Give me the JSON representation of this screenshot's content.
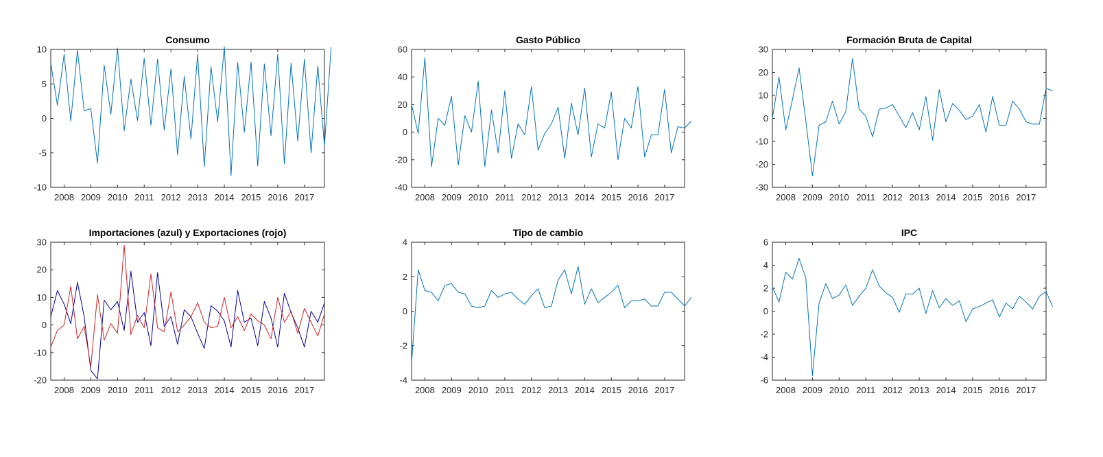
{
  "figure": {
    "background": "#ffffff"
  },
  "chart_data": [
    {
      "type": "line",
      "title": "Consumo",
      "xlabel": "",
      "ylabel": "",
      "x_start": "2007-Q3",
      "xticks": [
        "2008",
        "2009",
        "2010",
        "2011",
        "2012",
        "2013",
        "2014",
        "2015",
        "2016",
        "2017"
      ],
      "xlim": [
        "2007-Q3",
        "2017-Q4"
      ],
      "ylim": [
        -10,
        10
      ],
      "yticks": [
        -10,
        -5,
        0,
        5,
        10
      ],
      "series": [
        {
          "color": "#0072BD",
          "values": [
            8,
            1.9,
            9.3,
            -0.4,
            9.9,
            1.1,
            1.4,
            -6.5,
            7.7,
            0.6,
            10.2,
            -1.8,
            5.7,
            -0.3,
            8.7,
            -1.0,
            8.6,
            -1.7,
            7.2,
            -5.3,
            6.1,
            -3.0,
            9.3,
            -7.0,
            7.5,
            -0.5,
            10.4,
            -8.3,
            8.1,
            -2.0,
            8.2,
            -6.9,
            7.9,
            -2.5,
            9.3,
            -6.6,
            8.0,
            -3.3,
            8.6,
            -5.0,
            7.6,
            -4.0,
            10.3
          ]
        }
      ]
    },
    {
      "type": "line",
      "title": "Gasto Público",
      "xlabel": "",
      "ylabel": "",
      "x_start": "2007-Q3",
      "xticks": [
        "2008",
        "2009",
        "2010",
        "2011",
        "2012",
        "2013",
        "2014",
        "2015",
        "2016",
        "2017"
      ],
      "xlim": [
        "2007-Q3",
        "2017-Q4"
      ],
      "ylim": [
        -40,
        60
      ],
      "yticks": [
        -40,
        -20,
        0,
        20,
        40,
        60
      ],
      "series": [
        {
          "color": "#0072BD",
          "values": [
            20,
            -1,
            54,
            -25,
            10,
            5,
            26,
            -24,
            12,
            0,
            37,
            -25,
            16,
            -15,
            30,
            -19,
            6,
            -2,
            33,
            -13,
            -1,
            6,
            18,
            -19,
            21,
            -2,
            32,
            -18,
            6,
            3,
            29,
            -20,
            10,
            3,
            33,
            -18,
            -2,
            -2,
            31,
            -15,
            4,
            3,
            8
          ]
        }
      ]
    },
    {
      "type": "line",
      "title": "Formación Bruta de Capital",
      "xlabel": "",
      "ylabel": "",
      "x_start": "2007-Q3",
      "xticks": [
        "2008",
        "2009",
        "2010",
        "2011",
        "2012",
        "2013",
        "2014",
        "2015",
        "2016",
        "2017"
      ],
      "xlim": [
        "2007-Q3",
        "2017-Q4"
      ],
      "ylim": [
        -30,
        30
      ],
      "yticks": [
        -30,
        -20,
        -10,
        0,
        10,
        20,
        30
      ],
      "series": [
        {
          "color": "#0072BD",
          "values": [
            0,
            18,
            -5,
            8,
            22,
            -1,
            -25,
            -3,
            -1.5,
            7.5,
            -2.5,
            3,
            26,
            4,
            1,
            -8,
            4,
            4.5,
            6,
            1,
            -4,
            2.5,
            -5,
            9.5,
            -9.5,
            12.5,
            -1.5,
            6.5,
            3.5,
            -0.5,
            1,
            6,
            -6,
            9.5,
            -3,
            -3,
            7.5,
            4,
            -1.5,
            -2.5,
            -2.5,
            13,
            12
          ]
        }
      ]
    },
    {
      "type": "line",
      "title": "Importaciones (azul) y Exportaciones (rojo)",
      "xlabel": "",
      "ylabel": "",
      "x_start": "2007-Q3",
      "xticks": [
        "2008",
        "2009",
        "2010",
        "2011",
        "2012",
        "2013",
        "2014",
        "2015",
        "2016",
        "2017"
      ],
      "xlim": [
        "2007-Q3",
        "2017-Q4"
      ],
      "ylim": [
        -20,
        30
      ],
      "yticks": [
        -20,
        -10,
        0,
        10,
        20,
        30
      ],
      "series": [
        {
          "color": "#0000A0",
          "values": [
            3,
            12.5,
            7.5,
            0.5,
            15.5,
            3,
            -16.5,
            -19.5,
            9,
            5.5,
            8.5,
            -2,
            19.5,
            1,
            4.5,
            -7.5,
            19,
            -0.5,
            3,
            -7,
            5.5,
            3,
            -3,
            -8.5,
            7,
            5,
            1.5,
            -8,
            12.5,
            1,
            2.5,
            -7.5,
            8.5,
            2.5,
            -8,
            11.5,
            4.5,
            -1,
            -8,
            5,
            1,
            8
          ]
        },
        {
          "color": "#D22222",
          "values": [
            -8,
            -2,
            0,
            14,
            -5,
            -0.5,
            -15,
            11,
            -5.5,
            0.5,
            -3,
            29,
            -3.5,
            3.5,
            -1,
            18.5,
            -1,
            -2.5,
            12,
            -2.5,
            0,
            3,
            8,
            1,
            -1,
            -0.5,
            10,
            -1,
            3,
            -2,
            4,
            1.5,
            0,
            -5,
            10,
            1,
            5,
            -3,
            6,
            1,
            -4,
            4
          ]
        }
      ]
    },
    {
      "type": "line",
      "title": "Tipo de cambio",
      "xlabel": "",
      "ylabel": "",
      "x_start": "2007-Q3",
      "xticks": [
        "2008",
        "2009",
        "2010",
        "2011",
        "2012",
        "2013",
        "2014",
        "2015",
        "2016",
        "2017"
      ],
      "xlim": [
        "2007-Q3",
        "2017-Q4"
      ],
      "ylim": [
        -4,
        4
      ],
      "yticks": [
        -4,
        -2,
        0,
        2,
        4
      ],
      "series": [
        {
          "color": "#0072BD",
          "values": [
            -3,
            2.4,
            1.2,
            1.1,
            0.6,
            1.5,
            1.6,
            1.1,
            1.0,
            0.3,
            0.2,
            0.3,
            1.2,
            0.8,
            1.0,
            1.1,
            0.7,
            0.4,
            0.9,
            1.3,
            0.2,
            0.3,
            1.8,
            2.4,
            1.0,
            2.6,
            0.4,
            1.3,
            0.5,
            0.8,
            1.1,
            1.5,
            0.2,
            0.6,
            0.6,
            0.7,
            0.3,
            0.3,
            1.1,
            1.1,
            0.7,
            0.3,
            0.8
          ]
        }
      ]
    },
    {
      "type": "line",
      "title": "IPC",
      "xlabel": "",
      "ylabel": "",
      "x_start": "2007-Q3",
      "xticks": [
        "2008",
        "2009",
        "2010",
        "2011",
        "2012",
        "2013",
        "2014",
        "2015",
        "2016",
        "2017"
      ],
      "xlim": [
        "2007-Q3",
        "2017-Q4"
      ],
      "ylim": [
        -6,
        6
      ],
      "yticks": [
        -6,
        -4,
        -2,
        0,
        2,
        4,
        6
      ],
      "series": [
        {
          "color": "#0072BD",
          "values": [
            2.1,
            0.8,
            3.4,
            2.8,
            4.6,
            2.9,
            -5.6,
            0.7,
            2.4,
            1.1,
            1.4,
            2.3,
            0.5,
            1.3,
            2.0,
            3.6,
            2.2,
            1.6,
            1.2,
            -0.1,
            1.5,
            1.5,
            2.0,
            -0.2,
            1.8,
            0.3,
            1.1,
            0.5,
            0.9,
            -0.9,
            0.2,
            0.4,
            0.7,
            1.0,
            -0.5,
            0.7,
            0.2,
            1.3,
            0.8,
            0.2,
            1.3,
            1.7,
            0.4
          ]
        }
      ]
    }
  ]
}
